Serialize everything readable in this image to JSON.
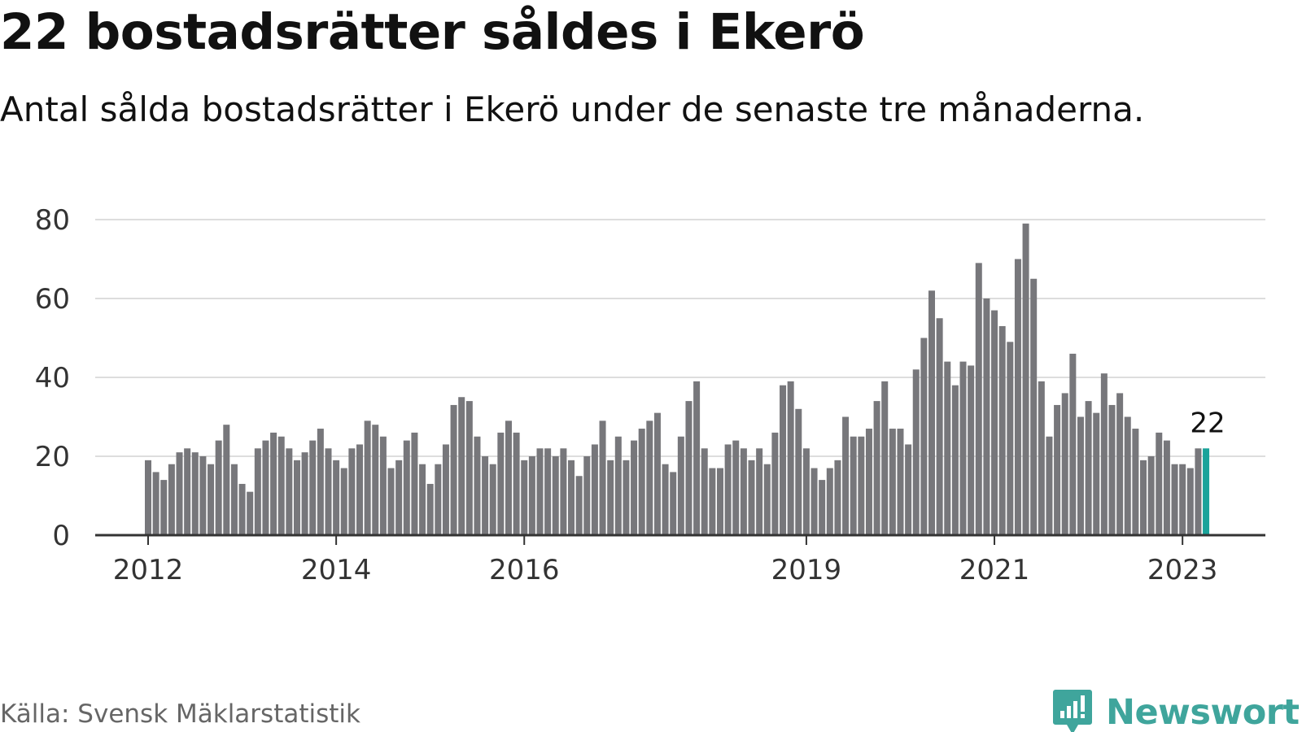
{
  "header": {
    "title": "22 bostadsrätter såldes i Ekerö",
    "subtitle": "Antal sålda bostadsrätter i Ekerö under de senaste tre månaderna."
  },
  "footer": {
    "source": "Källa: Svensk Mäklarstatistik",
    "logo_text": "Newsworthy"
  },
  "colors": {
    "bar": "#77777b",
    "highlight": "#1aa39a",
    "logo": "#3fa59c"
  },
  "chart_data": {
    "type": "bar",
    "title": "22 bostadsrätter såldes i Ekerö",
    "xlabel": "",
    "ylabel": "",
    "ylim": [
      0,
      80
    ],
    "yticks": [
      0,
      20,
      40,
      60,
      80
    ],
    "grid": true,
    "start": "2012-01",
    "x_ticks": [
      {
        "index": 0,
        "label": "2012"
      },
      {
        "index": 24,
        "label": "2014"
      },
      {
        "index": 48,
        "label": "2016"
      },
      {
        "index": 84,
        "label": "2019"
      },
      {
        "index": 108,
        "label": "2021"
      },
      {
        "index": 132,
        "label": "2023"
      }
    ],
    "values": [
      19,
      16,
      14,
      18,
      21,
      22,
      21,
      20,
      18,
      24,
      28,
      18,
      13,
      11,
      22,
      24,
      26,
      25,
      22,
      19,
      21,
      24,
      27,
      22,
      19,
      17,
      22,
      23,
      29,
      28,
      25,
      17,
      19,
      24,
      26,
      18,
      13,
      18,
      23,
      33,
      35,
      34,
      25,
      20,
      18,
      26,
      29,
      26,
      19,
      20,
      22,
      22,
      20,
      22,
      19,
      15,
      20,
      23,
      29,
      19,
      25,
      19,
      24,
      27,
      29,
      31,
      18,
      16,
      25,
      34,
      39,
      22,
      17,
      17,
      23,
      24,
      22,
      19,
      22,
      18,
      26,
      38,
      39,
      32,
      22,
      17,
      14,
      17,
      19,
      30,
      25,
      25,
      27,
      34,
      39,
      27,
      27,
      23,
      42,
      50,
      62,
      55,
      44,
      38,
      44,
      43,
      69,
      60,
      57,
      53,
      49,
      70,
      79,
      65,
      39,
      25,
      33,
      36,
      46,
      30,
      34,
      31,
      41,
      33,
      36,
      30,
      27,
      19,
      20,
      26,
      24,
      18,
      18,
      17,
      22,
      22
    ],
    "highlight_last": true,
    "value_label": "22"
  }
}
